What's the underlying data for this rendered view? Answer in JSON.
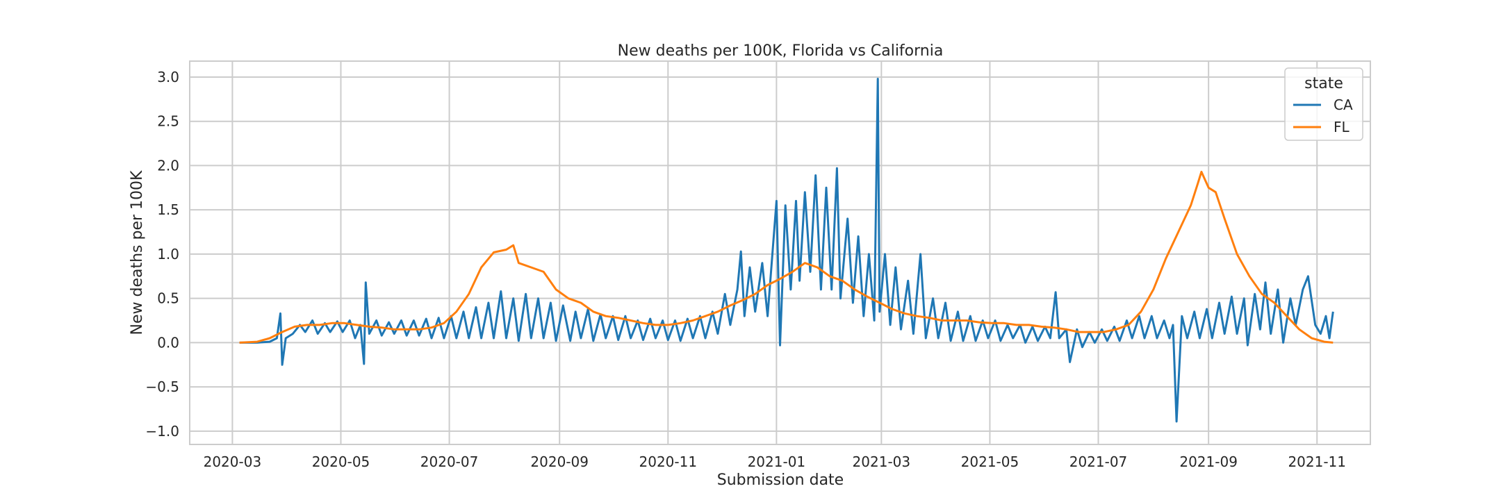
{
  "chart_data": {
    "type": "line",
    "title": "New deaths per 100K, Florida vs California",
    "xlabel": "Submission date",
    "ylabel": "New deaths per 100K",
    "x_range": [
      "2020-02-06",
      "2021-12-01"
    ],
    "ylim": [
      -1.15,
      3.18
    ],
    "x_ticks": [
      "2020-03",
      "2020-05",
      "2020-07",
      "2020-09",
      "2020-11",
      "2021-01",
      "2021-03",
      "2021-05",
      "2021-07",
      "2021-09",
      "2021-11"
    ],
    "y_ticks": [
      "3.0",
      "2.5",
      "2.0",
      "1.5",
      "1.0",
      "0.5",
      "0.0",
      "−0.5",
      "−1.0"
    ],
    "y_tick_values": [
      3.0,
      2.5,
      2.0,
      1.5,
      1.0,
      0.5,
      0.0,
      -0.5,
      -1.0
    ],
    "grid": true,
    "legend": {
      "title": "state",
      "placement": "top-right"
    },
    "series": [
      {
        "name": "CA",
        "color": "#1f77b4",
        "points": [
          [
            "2020-03-05",
            0.0
          ],
          [
            "2020-03-15",
            0.0
          ],
          [
            "2020-03-22",
            0.01
          ],
          [
            "2020-03-26",
            0.05
          ],
          [
            "2020-03-28",
            0.33
          ],
          [
            "2020-03-29",
            -0.25
          ],
          [
            "2020-03-31",
            0.05
          ],
          [
            "2020-04-04",
            0.1
          ],
          [
            "2020-04-08",
            0.2
          ],
          [
            "2020-04-11",
            0.12
          ],
          [
            "2020-04-15",
            0.25
          ],
          [
            "2020-04-18",
            0.1
          ],
          [
            "2020-04-22",
            0.22
          ],
          [
            "2020-04-25",
            0.12
          ],
          [
            "2020-04-29",
            0.24
          ],
          [
            "2020-05-02",
            0.12
          ],
          [
            "2020-05-06",
            0.25
          ],
          [
            "2020-05-09",
            0.05
          ],
          [
            "2020-05-12",
            0.2
          ],
          [
            "2020-05-14",
            -0.24
          ],
          [
            "2020-05-15",
            0.68
          ],
          [
            "2020-05-17",
            0.1
          ],
          [
            "2020-05-21",
            0.25
          ],
          [
            "2020-05-24",
            0.08
          ],
          [
            "2020-05-28",
            0.23
          ],
          [
            "2020-05-31",
            0.1
          ],
          [
            "2020-06-04",
            0.25
          ],
          [
            "2020-06-07",
            0.08
          ],
          [
            "2020-06-11",
            0.25
          ],
          [
            "2020-06-14",
            0.08
          ],
          [
            "2020-06-18",
            0.27
          ],
          [
            "2020-06-21",
            0.05
          ],
          [
            "2020-06-25",
            0.28
          ],
          [
            "2020-06-28",
            0.05
          ],
          [
            "2020-07-02",
            0.3
          ],
          [
            "2020-07-05",
            0.05
          ],
          [
            "2020-07-09",
            0.35
          ],
          [
            "2020-07-12",
            0.05
          ],
          [
            "2020-07-16",
            0.4
          ],
          [
            "2020-07-19",
            0.05
          ],
          [
            "2020-07-23",
            0.45
          ],
          [
            "2020-07-26",
            0.05
          ],
          [
            "2020-07-30",
            0.58
          ],
          [
            "2020-08-02",
            0.05
          ],
          [
            "2020-08-06",
            0.5
          ],
          [
            "2020-08-09",
            0.02
          ],
          [
            "2020-08-13",
            0.55
          ],
          [
            "2020-08-16",
            0.05
          ],
          [
            "2020-08-20",
            0.5
          ],
          [
            "2020-08-23",
            0.05
          ],
          [
            "2020-08-27",
            0.45
          ],
          [
            "2020-08-30",
            0.02
          ],
          [
            "2020-09-03",
            0.42
          ],
          [
            "2020-09-07",
            0.02
          ],
          [
            "2020-09-10",
            0.35
          ],
          [
            "2020-09-13",
            0.05
          ],
          [
            "2020-09-17",
            0.38
          ],
          [
            "2020-09-20",
            0.02
          ],
          [
            "2020-09-24",
            0.32
          ],
          [
            "2020-09-27",
            0.05
          ],
          [
            "2020-10-01",
            0.3
          ],
          [
            "2020-10-04",
            0.03
          ],
          [
            "2020-10-08",
            0.3
          ],
          [
            "2020-10-11",
            0.05
          ],
          [
            "2020-10-15",
            0.25
          ],
          [
            "2020-10-18",
            0.03
          ],
          [
            "2020-10-22",
            0.27
          ],
          [
            "2020-10-25",
            0.05
          ],
          [
            "2020-10-29",
            0.25
          ],
          [
            "2020-11-01",
            0.03
          ],
          [
            "2020-11-05",
            0.25
          ],
          [
            "2020-11-08",
            0.02
          ],
          [
            "2020-11-12",
            0.27
          ],
          [
            "2020-11-15",
            0.05
          ],
          [
            "2020-11-19",
            0.3
          ],
          [
            "2020-11-22",
            0.05
          ],
          [
            "2020-11-26",
            0.35
          ],
          [
            "2020-11-29",
            0.1
          ],
          [
            "2020-12-03",
            0.55
          ],
          [
            "2020-12-06",
            0.2
          ],
          [
            "2020-12-10",
            0.6
          ],
          [
            "2020-12-12",
            1.03
          ],
          [
            "2020-12-14",
            0.3
          ],
          [
            "2020-12-17",
            0.85
          ],
          [
            "2020-12-20",
            0.35
          ],
          [
            "2020-12-24",
            0.9
          ],
          [
            "2020-12-27",
            0.3
          ],
          [
            "2021-01-01",
            1.6
          ],
          [
            "2021-01-03",
            -0.03
          ],
          [
            "2021-01-06",
            1.55
          ],
          [
            "2021-01-09",
            0.6
          ],
          [
            "2021-01-12",
            1.6
          ],
          [
            "2021-01-14",
            0.7
          ],
          [
            "2021-01-17",
            1.7
          ],
          [
            "2021-01-20",
            0.8
          ],
          [
            "2021-01-23",
            1.89
          ],
          [
            "2021-01-26",
            0.6
          ],
          [
            "2021-01-29",
            1.75
          ],
          [
            "2021-02-01",
            0.6
          ],
          [
            "2021-02-04",
            1.97
          ],
          [
            "2021-02-06",
            0.5
          ],
          [
            "2021-02-10",
            1.4
          ],
          [
            "2021-02-13",
            0.45
          ],
          [
            "2021-02-16",
            1.2
          ],
          [
            "2021-02-19",
            0.3
          ],
          [
            "2021-02-22",
            1.0
          ],
          [
            "2021-02-25",
            0.25
          ],
          [
            "2021-02-27",
            2.98
          ],
          [
            "2021-02-28",
            0.35
          ],
          [
            "2021-03-03",
            1.0
          ],
          [
            "2021-03-06",
            0.2
          ],
          [
            "2021-03-09",
            0.85
          ],
          [
            "2021-03-12",
            0.15
          ],
          [
            "2021-03-16",
            0.7
          ],
          [
            "2021-03-19",
            0.1
          ],
          [
            "2021-03-23",
            1.0
          ],
          [
            "2021-03-26",
            0.05
          ],
          [
            "2021-03-30",
            0.5
          ],
          [
            "2021-04-02",
            0.05
          ],
          [
            "2021-04-06",
            0.45
          ],
          [
            "2021-04-09",
            0.02
          ],
          [
            "2021-04-13",
            0.35
          ],
          [
            "2021-04-16",
            0.02
          ],
          [
            "2021-04-20",
            0.3
          ],
          [
            "2021-04-23",
            0.02
          ],
          [
            "2021-04-27",
            0.25
          ],
          [
            "2021-04-30",
            0.05
          ],
          [
            "2021-05-04",
            0.25
          ],
          [
            "2021-05-07",
            0.02
          ],
          [
            "2021-05-11",
            0.2
          ],
          [
            "2021-05-14",
            0.05
          ],
          [
            "2021-05-18",
            0.2
          ],
          [
            "2021-05-21",
            0.0
          ],
          [
            "2021-05-25",
            0.18
          ],
          [
            "2021-05-28",
            0.02
          ],
          [
            "2021-06-01",
            0.18
          ],
          [
            "2021-06-04",
            0.05
          ],
          [
            "2021-06-07",
            0.57
          ],
          [
            "2021-06-09",
            0.05
          ],
          [
            "2021-06-13",
            0.15
          ],
          [
            "2021-06-15",
            -0.22
          ],
          [
            "2021-06-19",
            0.15
          ],
          [
            "2021-06-22",
            -0.05
          ],
          [
            "2021-06-26",
            0.12
          ],
          [
            "2021-06-29",
            0.0
          ],
          [
            "2021-07-03",
            0.15
          ],
          [
            "2021-07-06",
            0.02
          ],
          [
            "2021-07-10",
            0.18
          ],
          [
            "2021-07-13",
            0.02
          ],
          [
            "2021-07-17",
            0.25
          ],
          [
            "2021-07-20",
            0.05
          ],
          [
            "2021-07-24",
            0.3
          ],
          [
            "2021-07-27",
            0.05
          ],
          [
            "2021-07-31",
            0.3
          ],
          [
            "2021-08-03",
            0.05
          ],
          [
            "2021-08-07",
            0.25
          ],
          [
            "2021-08-10",
            0.05
          ],
          [
            "2021-08-12",
            0.2
          ],
          [
            "2021-08-14",
            -0.89
          ],
          [
            "2021-08-17",
            0.3
          ],
          [
            "2021-08-20",
            0.05
          ],
          [
            "2021-08-24",
            0.35
          ],
          [
            "2021-08-27",
            0.05
          ],
          [
            "2021-08-31",
            0.38
          ],
          [
            "2021-09-03",
            0.05
          ],
          [
            "2021-09-07",
            0.45
          ],
          [
            "2021-09-10",
            0.1
          ],
          [
            "2021-09-14",
            0.52
          ],
          [
            "2021-09-17",
            0.1
          ],
          [
            "2021-09-21",
            0.5
          ],
          [
            "2021-09-23",
            -0.03
          ],
          [
            "2021-09-27",
            0.55
          ],
          [
            "2021-09-30",
            0.15
          ],
          [
            "2021-10-03",
            0.68
          ],
          [
            "2021-10-06",
            0.1
          ],
          [
            "2021-10-10",
            0.6
          ],
          [
            "2021-10-13",
            0.0
          ],
          [
            "2021-10-17",
            0.5
          ],
          [
            "2021-10-20",
            0.2
          ],
          [
            "2021-10-24",
            0.6
          ],
          [
            "2021-10-27",
            0.75
          ],
          [
            "2021-10-31",
            0.2
          ],
          [
            "2021-11-03",
            0.1
          ],
          [
            "2021-11-06",
            0.3
          ],
          [
            "2021-11-08",
            0.05
          ],
          [
            "2021-11-10",
            0.35
          ]
        ]
      },
      {
        "name": "FL",
        "color": "#ff7f0e",
        "points": [
          [
            "2020-03-05",
            0.0
          ],
          [
            "2020-03-15",
            0.01
          ],
          [
            "2020-03-22",
            0.05
          ],
          [
            "2020-03-29",
            0.12
          ],
          [
            "2020-04-05",
            0.18
          ],
          [
            "2020-04-12",
            0.2
          ],
          [
            "2020-04-19",
            0.2
          ],
          [
            "2020-04-26",
            0.22
          ],
          [
            "2020-05-03",
            0.22
          ],
          [
            "2020-05-10",
            0.2
          ],
          [
            "2020-05-17",
            0.18
          ],
          [
            "2020-05-24",
            0.17
          ],
          [
            "2020-05-31",
            0.15
          ],
          [
            "2020-06-07",
            0.15
          ],
          [
            "2020-06-14",
            0.15
          ],
          [
            "2020-06-21",
            0.17
          ],
          [
            "2020-06-28",
            0.22
          ],
          [
            "2020-07-05",
            0.35
          ],
          [
            "2020-07-12",
            0.55
          ],
          [
            "2020-07-19",
            0.85
          ],
          [
            "2020-07-26",
            1.02
          ],
          [
            "2020-08-02",
            1.05
          ],
          [
            "2020-08-06",
            1.1
          ],
          [
            "2020-08-09",
            0.9
          ],
          [
            "2020-08-16",
            0.85
          ],
          [
            "2020-08-23",
            0.8
          ],
          [
            "2020-08-30",
            0.6
          ],
          [
            "2020-09-06",
            0.5
          ],
          [
            "2020-09-13",
            0.45
          ],
          [
            "2020-09-20",
            0.35
          ],
          [
            "2020-09-27",
            0.3
          ],
          [
            "2020-10-04",
            0.28
          ],
          [
            "2020-10-11",
            0.25
          ],
          [
            "2020-10-18",
            0.22
          ],
          [
            "2020-10-25",
            0.2
          ],
          [
            "2020-11-01",
            0.2
          ],
          [
            "2020-11-08",
            0.22
          ],
          [
            "2020-11-15",
            0.25
          ],
          [
            "2020-11-22",
            0.3
          ],
          [
            "2020-11-29",
            0.35
          ],
          [
            "2020-12-06",
            0.42
          ],
          [
            "2020-12-13",
            0.48
          ],
          [
            "2020-12-20",
            0.55
          ],
          [
            "2020-12-27",
            0.65
          ],
          [
            "2021-01-03",
            0.72
          ],
          [
            "2021-01-10",
            0.8
          ],
          [
            "2021-01-17",
            0.9
          ],
          [
            "2021-01-24",
            0.85
          ],
          [
            "2021-01-31",
            0.75
          ],
          [
            "2021-02-07",
            0.7
          ],
          [
            "2021-02-14",
            0.6
          ],
          [
            "2021-02-21",
            0.52
          ],
          [
            "2021-02-28",
            0.45
          ],
          [
            "2021-03-07",
            0.38
          ],
          [
            "2021-03-14",
            0.33
          ],
          [
            "2021-03-21",
            0.3
          ],
          [
            "2021-03-28",
            0.28
          ],
          [
            "2021-04-04",
            0.25
          ],
          [
            "2021-04-11",
            0.25
          ],
          [
            "2021-04-18",
            0.25
          ],
          [
            "2021-04-25",
            0.23
          ],
          [
            "2021-05-02",
            0.22
          ],
          [
            "2021-05-09",
            0.22
          ],
          [
            "2021-05-16",
            0.2
          ],
          [
            "2021-05-23",
            0.2
          ],
          [
            "2021-05-30",
            0.18
          ],
          [
            "2021-06-06",
            0.17
          ],
          [
            "2021-06-13",
            0.15
          ],
          [
            "2021-06-20",
            0.12
          ],
          [
            "2021-06-27",
            0.12
          ],
          [
            "2021-07-04",
            0.12
          ],
          [
            "2021-07-11",
            0.15
          ],
          [
            "2021-07-18",
            0.2
          ],
          [
            "2021-07-25",
            0.35
          ],
          [
            "2021-08-01",
            0.6
          ],
          [
            "2021-08-08",
            0.95
          ],
          [
            "2021-08-15",
            1.25
          ],
          [
            "2021-08-22",
            1.55
          ],
          [
            "2021-08-26",
            1.8
          ],
          [
            "2021-08-28",
            1.93
          ],
          [
            "2021-09-01",
            1.75
          ],
          [
            "2021-09-05",
            1.7
          ],
          [
            "2021-09-10",
            1.4
          ],
          [
            "2021-09-17",
            1.0
          ],
          [
            "2021-09-24",
            0.75
          ],
          [
            "2021-10-01",
            0.55
          ],
          [
            "2021-10-08",
            0.45
          ],
          [
            "2021-10-15",
            0.3
          ],
          [
            "2021-10-22",
            0.15
          ],
          [
            "2021-10-29",
            0.05
          ],
          [
            "2021-11-05",
            0.01
          ],
          [
            "2021-11-10",
            0.0
          ]
        ]
      }
    ]
  }
}
